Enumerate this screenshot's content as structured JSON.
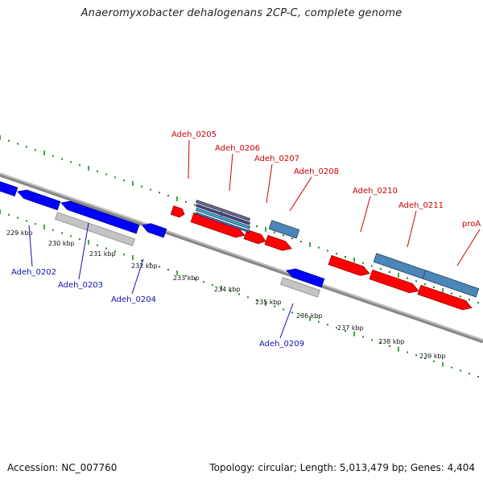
{
  "title": "Anaeromyxobacter dehalogenans 2CP-C, complete genome",
  "footer": {
    "accession": "Accession: NC_007760",
    "topology": "Topology: circular; Length: 5,013,479 bp; Genes: 4,404"
  },
  "colors": {
    "forward_gene": "#ff0000",
    "reverse_gene": "#0000ff",
    "rna_steelblue": "#4a86b8",
    "pseudo_gray": "#c4c4c4",
    "ruler_green": "#1a8a1a",
    "forward_label": "#cc0000",
    "reverse_label": "#1010b0",
    "backbone": "#777777"
  },
  "ruler_ticks": [
    {
      "label": "229 kbp"
    },
    {
      "label": "230 kbp"
    },
    {
      "label": "231 kbp"
    },
    {
      "label": "232 kbp"
    },
    {
      "label": "233 kbp"
    },
    {
      "label": "234 kbp"
    },
    {
      "label": "235 kbp"
    },
    {
      "label": "236 kbp"
    },
    {
      "label": "237 kbp"
    },
    {
      "label": "238 kbp"
    },
    {
      "label": "239 kbp"
    }
  ],
  "forward_labels": [
    {
      "text": "Adeh_0205"
    },
    {
      "text": "Adeh_0206"
    },
    {
      "text": "Adeh_0207"
    },
    {
      "text": "Adeh_0208"
    },
    {
      "text": "Adeh_0210"
    },
    {
      "text": "Adeh_0211"
    },
    {
      "text": "proA"
    }
  ],
  "reverse_labels": [
    {
      "text": "Adeh_0202"
    },
    {
      "text": "Adeh_0203"
    },
    {
      "text": "Adeh_0204"
    },
    {
      "text": "Adeh_0209"
    }
  ]
}
